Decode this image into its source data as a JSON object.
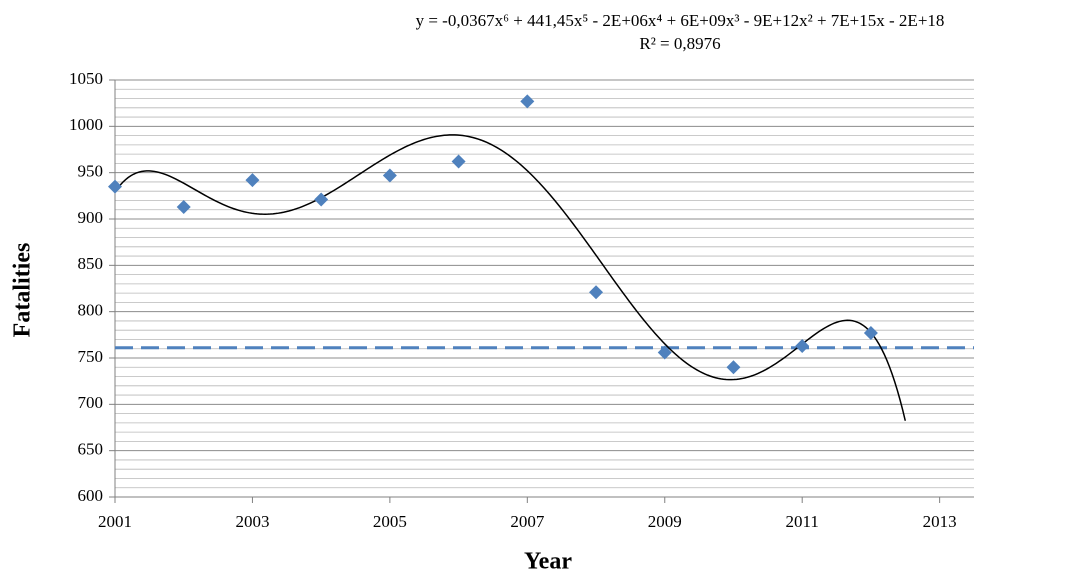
{
  "chart_data": {
    "type": "scatter",
    "x_label": "Year",
    "y_label": "Fatalities",
    "x": [
      2001,
      2002,
      2003,
      2004,
      2005,
      2006,
      2007,
      2008,
      2009,
      2010,
      2011,
      2012
    ],
    "series": [
      {
        "color": "#4f81bd",
        "values": [
          935,
          913,
          942,
          921,
          947,
          962,
          1027,
          821,
          756,
          740,
          763,
          777
        ]
      }
    ],
    "trendline": {
      "type": "polynomial",
      "order": 6,
      "forward": 0.5,
      "color": "#000000",
      "equation": "y = -0,0367x⁶ + 441,45x⁵ - 2E+06x⁴ + 6E+09x³ - 9E+12x² + 7E+15x - 2E+18",
      "r_squared": "R² = 0,8976"
    },
    "reference_line": {
      "value": 761,
      "color": "#4f81bd",
      "dashed": true
    },
    "xlim": [
      2001,
      2013.5
    ],
    "xticks": [
      2001,
      2003,
      2005,
      2007,
      2009,
      2011,
      2013
    ],
    "ylim": [
      600,
      1050
    ],
    "yticks": [
      600,
      650,
      700,
      750,
      800,
      850,
      900,
      950,
      1000,
      1050
    ],
    "ygrid_minor": [
      610,
      620,
      630,
      640,
      660,
      670,
      680,
      690,
      710,
      720,
      730,
      740,
      760,
      770,
      780,
      790,
      810,
      820,
      830,
      840,
      860,
      870,
      880,
      890,
      910,
      920,
      930,
      940,
      960,
      970,
      980,
      990,
      1010,
      1020,
      1030,
      1040
    ],
    "grid": true
  }
}
